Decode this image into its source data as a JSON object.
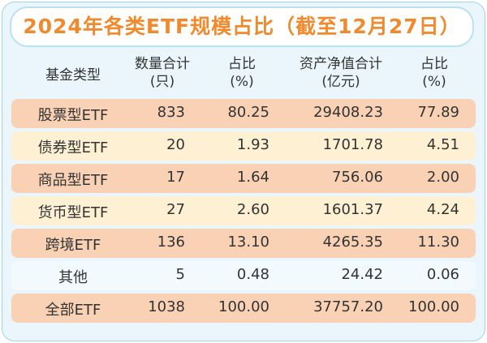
{
  "header": {
    "title": "2024年各类ETF规模占比（截至12月27日）"
  },
  "table": {
    "columns": [
      [
        "基金类型"
      ],
      [
        "数量合计",
        "(只)"
      ],
      [
        "占比",
        "(%)"
      ],
      [
        "资产净值合计",
        "(亿元)"
      ],
      [
        "占比",
        "(%)"
      ]
    ],
    "rows": [
      [
        "股票型ETF",
        "833",
        "80.25",
        "29408.23",
        "77.89"
      ],
      [
        "债券型ETF",
        "20",
        "1.93",
        "1701.78",
        "4.51"
      ],
      [
        "商品型ETF",
        "17",
        "1.64",
        "756.06",
        "2.00"
      ],
      [
        "货币型ETF",
        "27",
        "2.60",
        "1601.37",
        "4.24"
      ],
      [
        "跨境ETF",
        "136",
        "13.10",
        "4265.35",
        "11.30"
      ],
      [
        "其他",
        "5",
        "0.48",
        "24.42",
        "0.06"
      ],
      [
        "全部ETF",
        "1038",
        "100.00",
        "37757.20",
        "100.00"
      ]
    ]
  }
}
